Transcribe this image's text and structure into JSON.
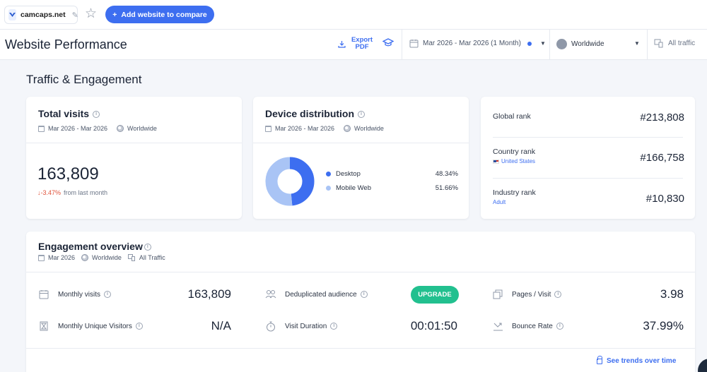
{
  "topbar": {
    "site_name": "camcaps.net",
    "add_button_label": "Add website to compare"
  },
  "header": {
    "title": "Website Performance",
    "export_label_1": "Export",
    "export_label_2": "PDF",
    "date_range": "Mar 2026 - Mar 2026 (1 Month)",
    "region": "Worldwide",
    "traffic_type": "All traffic"
  },
  "section_title": "Traffic & Engagement",
  "total_visits": {
    "title": "Total visits",
    "date": "Mar 2026 - Mar 2026",
    "region": "Worldwide",
    "value": "163,809",
    "change": "-3.47%",
    "change_ref": "from last month"
  },
  "device_distribution": {
    "title": "Device distribution",
    "date": "Mar 2026 - Mar 2026",
    "region": "Worldwide",
    "items": [
      {
        "label": "Desktop",
        "percent": "48.34%",
        "value": 48.34,
        "color": "#3d6ef0"
      },
      {
        "label": "Mobile Web",
        "percent": "51.66%",
        "value": 51.66,
        "color": "#a9c4f5"
      }
    ]
  },
  "ranks": [
    {
      "label": "Global rank",
      "sub": "",
      "value": "#213,808"
    },
    {
      "label": "Country rank",
      "sub": "United States",
      "value": "#166,758"
    },
    {
      "label": "Industry rank",
      "sub": "Adult",
      "value": "#10,830"
    }
  ],
  "engagement": {
    "title": "Engagement overview",
    "date": "Mar 2026",
    "region": "Worldwide",
    "traffic": "All Traffic",
    "monthly_visits_label": "Monthly visits",
    "monthly_visits_value": "163,809",
    "unique_visitors_label": "Monthly Unique Visitors",
    "unique_visitors_value": "N/A",
    "dedup_label": "Deduplicated audience",
    "upgrade_label": "UPGRADE",
    "visit_duration_label": "Visit Duration",
    "visit_duration_value": "00:01:50",
    "pages_visit_label": "Pages / Visit",
    "pages_visit_value": "3.98",
    "bounce_rate_label": "Bounce Rate",
    "bounce_rate_value": "37.99%",
    "trends_label": "See trends over time"
  }
}
